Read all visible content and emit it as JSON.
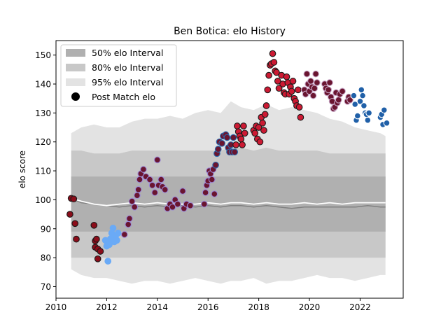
{
  "chart_data": {
    "type": "scatter",
    "title": "Ben Botica: elo History",
    "xlabel": "",
    "ylabel": "elo score",
    "xlim": [
      2010,
      2023.7
    ],
    "ylim": [
      66,
      155
    ],
    "xticks": [
      2010,
      2012,
      2014,
      2016,
      2018,
      2020,
      2022
    ],
    "yticks": [
      70,
      80,
      90,
      100,
      110,
      120,
      130,
      140,
      150
    ],
    "grid": false,
    "legend_position": "top-left",
    "legend": [
      {
        "label": "50% elo Interval",
        "kind": "band",
        "color": "#b0b0b0"
      },
      {
        "label": "80% elo Interval",
        "kind": "band",
        "color": "#c8c8c8"
      },
      {
        "label": "95% elo Interval",
        "kind": "band",
        "color": "#e3e3e3"
      },
      {
        "label": "Post Match elo",
        "kind": "marker",
        "color": "#000000"
      }
    ],
    "band_x": [
      2010.6,
      2011.0,
      2011.5,
      2012.0,
      2012.5,
      2013.0,
      2013.5,
      2014.0,
      2014.5,
      2015.0,
      2015.5,
      2016.0,
      2016.5,
      2016.9,
      2017.3,
      2017.8,
      2018.3,
      2018.8,
      2019.3,
      2019.8,
      2020.3,
      2020.8,
      2021.3,
      2021.8,
      2022.3,
      2022.8,
      2023.0
    ],
    "band_95_upper": [
      123,
      125,
      126,
      125,
      125,
      127,
      128,
      128,
      129,
      128,
      130,
      131,
      130,
      134,
      132,
      131,
      133,
      131,
      132,
      131,
      130,
      128,
      127,
      125,
      124,
      123,
      122
    ],
    "band_95_lower": [
      76,
      74,
      73,
      73,
      72,
      71,
      72,
      72,
      71,
      72,
      73,
      72,
      71,
      72,
      72,
      73,
      71,
      72,
      72,
      73,
      74,
      73,
      73,
      72,
      73,
      74,
      74
    ],
    "band_80_upper": [
      117,
      117,
      116,
      116,
      116,
      117,
      117,
      117,
      117,
      117,
      117,
      117,
      117,
      118,
      118,
      117,
      118,
      117,
      117,
      117,
      117,
      116,
      116,
      116,
      116,
      116,
      116
    ],
    "band_80_lower": [
      80,
      80,
      80,
      80,
      80,
      80,
      80,
      80,
      80,
      80,
      80,
      80,
      80,
      80,
      80,
      80,
      80,
      80,
      80,
      80,
      80,
      80,
      80,
      80,
      80,
      80,
      80
    ],
    "band_50_upper": [
      108,
      108,
      108,
      108,
      108,
      108,
      108,
      108,
      108,
      108,
      108,
      108,
      108,
      108,
      108,
      108,
      108,
      108,
      108,
      108,
      108,
      108,
      108,
      108,
      108,
      108,
      108
    ],
    "band_50_lower": [
      89,
      89,
      89,
      89,
      89,
      89,
      89,
      89,
      89,
      89,
      89,
      89,
      89,
      89,
      89,
      89,
      89,
      89,
      89,
      89,
      89,
      89,
      89,
      89,
      89,
      89,
      89
    ],
    "median_line": [
      100.5,
      99,
      98.5,
      98,
      97.5,
      98,
      97.5,
      98,
      97.5,
      98,
      97.5,
      98,
      97.5,
      98,
      98,
      97.5,
      98,
      97.5,
      97,
      97.5,
      97.5,
      97.5,
      97.5,
      97.5,
      98,
      97.5,
      97.5
    ],
    "mean_line": [
      100.5,
      99.5,
      98.5,
      98,
      98.5,
      99,
      98.5,
      99,
      98.5,
      98.5,
      98.5,
      99,
      98.5,
      99,
      99,
      98.5,
      99,
      98.5,
      98.5,
      99,
      98.5,
      99,
      98.5,
      99,
      99,
      99,
      99
    ],
    "series": [
      {
        "color": "#1a1a1a",
        "face": "#8b0d1a",
        "points": [
          [
            2010.55,
            95
          ],
          [
            2010.6,
            100.5
          ],
          [
            2010.7,
            100.3
          ],
          [
            2010.75,
            91.8
          ],
          [
            2010.8,
            86.4
          ],
          [
            2011.5,
            91.2
          ],
          [
            2011.55,
            85.8
          ],
          [
            2011.55,
            83.6
          ],
          [
            2011.6,
            86.4
          ],
          [
            2011.65,
            83
          ],
          [
            2011.65,
            79.6
          ],
          [
            2011.75,
            82.2
          ]
        ]
      },
      {
        "color": "#6aaaf6",
        "face": "#6aaaf6",
        "points": [
          [
            2011.95,
            86
          ],
          [
            2012.0,
            84
          ],
          [
            2012.05,
            78.8
          ],
          [
            2012.1,
            84.5
          ],
          [
            2012.15,
            86.5
          ],
          [
            2012.2,
            88.5
          ],
          [
            2012.25,
            90.2
          ],
          [
            2012.3,
            85.5
          ],
          [
            2012.35,
            87.5
          ],
          [
            2012.4,
            86
          ],
          [
            2012.45,
            88.5
          ]
        ]
      },
      {
        "color": "#9b8ad8",
        "face": "#6a1530",
        "points": [
          [
            2012.7,
            88
          ],
          [
            2012.85,
            91.5
          ],
          [
            2012.9,
            93.5
          ],
          [
            2013.0,
            99.5
          ],
          [
            2013.1,
            97.5
          ],
          [
            2013.2,
            101.5
          ],
          [
            2013.25,
            103.5
          ],
          [
            2013.3,
            107
          ],
          [
            2013.35,
            109
          ],
          [
            2013.45,
            110.5
          ],
          [
            2013.55,
            108
          ],
          [
            2013.7,
            107
          ],
          [
            2013.8,
            105
          ],
          [
            2013.9,
            102.5
          ],
          [
            2014.0,
            113.8
          ],
          [
            2014.05,
            105
          ],
          [
            2014.15,
            107
          ],
          [
            2014.2,
            104.5
          ],
          [
            2014.3,
            103.5
          ],
          [
            2014.4,
            97
          ],
          [
            2014.5,
            98.5
          ],
          [
            2014.6,
            97.5
          ],
          [
            2014.7,
            100
          ],
          [
            2014.8,
            98.5
          ],
          [
            2015.0,
            103
          ],
          [
            2015.05,
            97
          ],
          [
            2015.15,
            98.5
          ],
          [
            2015.3,
            98
          ],
          [
            2015.85,
            98.5
          ],
          [
            2015.9,
            102.5
          ],
          [
            2015.95,
            105
          ],
          [
            2016.0,
            106.5
          ],
          [
            2016.05,
            110
          ],
          [
            2016.1,
            109
          ],
          [
            2016.15,
            107
          ],
          [
            2016.2,
            110.5
          ],
          [
            2016.25,
            102
          ]
        ]
      },
      {
        "color": "#2a6bb0",
        "face": "#6a1530",
        "points": [
          [
            2016.3,
            112
          ],
          [
            2016.35,
            116
          ],
          [
            2016.4,
            117.5
          ],
          [
            2016.45,
            120
          ],
          [
            2016.55,
            119.5
          ],
          [
            2016.6,
            122
          ],
          [
            2016.7,
            122.5
          ],
          [
            2016.75,
            121.5
          ],
          [
            2016.8,
            118
          ],
          [
            2016.85,
            116.5
          ],
          [
            2016.9,
            119
          ],
          [
            2016.95,
            116.5
          ],
          [
            2017.0,
            121.5
          ],
          [
            2017.05,
            116.5
          ]
        ]
      },
      {
        "color": "#1a1a1a",
        "face": "#cc1a33",
        "points": [
          [
            2017.1,
            119
          ],
          [
            2017.15,
            125.5
          ],
          [
            2017.2,
            123.5
          ],
          [
            2017.25,
            122
          ],
          [
            2017.3,
            121
          ],
          [
            2017.35,
            119
          ],
          [
            2017.4,
            125.5
          ],
          [
            2017.45,
            123
          ],
          [
            2017.8,
            124
          ],
          [
            2017.85,
            123
          ],
          [
            2017.9,
            125.5
          ],
          [
            2017.95,
            121
          ],
          [
            2018.0,
            125
          ],
          [
            2018.05,
            120
          ],
          [
            2018.1,
            128.5
          ],
          [
            2018.15,
            126.5
          ],
          [
            2018.2,
            124
          ],
          [
            2018.25,
            129.5
          ],
          [
            2018.3,
            132.5
          ],
          [
            2018.35,
            138
          ],
          [
            2018.4,
            143
          ],
          [
            2018.45,
            146.5
          ],
          [
            2018.5,
            147
          ],
          [
            2018.55,
            150.5
          ],
          [
            2018.6,
            147.5
          ],
          [
            2018.65,
            144.5
          ],
          [
            2018.7,
            144
          ],
          [
            2018.75,
            141
          ],
          [
            2018.8,
            138.5
          ],
          [
            2018.9,
            143
          ],
          [
            2018.95,
            140
          ],
          [
            2019.0,
            137
          ],
          [
            2019.05,
            136.5
          ],
          [
            2019.1,
            142.5
          ],
          [
            2019.15,
            140.5
          ],
          [
            2019.2,
            136.5
          ],
          [
            2019.25,
            139
          ],
          [
            2019.3,
            137.5
          ],
          [
            2019.35,
            141
          ],
          [
            2019.4,
            135
          ],
          [
            2019.45,
            134
          ],
          [
            2019.5,
            132.5
          ],
          [
            2019.55,
            138
          ],
          [
            2019.6,
            132
          ],
          [
            2019.65,
            128.5
          ]
        ]
      },
      {
        "color": "#c8a8c8",
        "face": "#6a1530",
        "points": [
          [
            2019.8,
            138
          ],
          [
            2019.85,
            136.5
          ],
          [
            2019.9,
            143.5
          ],
          [
            2019.95,
            140
          ],
          [
            2020.0,
            137.5
          ],
          [
            2020.05,
            141
          ],
          [
            2020.1,
            139
          ],
          [
            2020.15,
            136
          ],
          [
            2020.2,
            138.5
          ],
          [
            2020.25,
            143.5
          ],
          [
            2020.3,
            140.5
          ],
          [
            2020.6,
            140
          ],
          [
            2020.65,
            138.5
          ],
          [
            2020.7,
            137
          ],
          [
            2020.75,
            138
          ],
          [
            2020.8,
            140.5
          ],
          [
            2020.85,
            135.5
          ],
          [
            2020.9,
            134
          ],
          [
            2020.95,
            131.5
          ],
          [
            2021.0,
            132
          ],
          [
            2021.05,
            137
          ],
          [
            2021.1,
            133.5
          ],
          [
            2021.15,
            134.5
          ],
          [
            2021.2,
            136.5
          ],
          [
            2021.3,
            137.5
          ],
          [
            2021.5,
            134
          ],
          [
            2021.55,
            135.5
          ],
          [
            2021.6,
            134.5
          ]
        ]
      },
      {
        "color": "#ffffff",
        "face": "#2060a8",
        "points": [
          [
            2021.75,
            136
          ],
          [
            2021.8,
            133
          ],
          [
            2021.85,
            127.5
          ],
          [
            2021.9,
            129
          ],
          [
            2022.0,
            134
          ],
          [
            2022.05,
            138
          ],
          [
            2022.1,
            136
          ],
          [
            2022.15,
            132.5
          ],
          [
            2022.2,
            130
          ],
          [
            2022.25,
            129.5
          ],
          [
            2022.3,
            127.5
          ],
          [
            2022.35,
            130
          ],
          [
            2022.8,
            128.5
          ],
          [
            2022.85,
            129.5
          ],
          [
            2022.9,
            126
          ],
          [
            2022.95,
            131
          ],
          [
            2023.05,
            126.5
          ]
        ]
      }
    ]
  }
}
